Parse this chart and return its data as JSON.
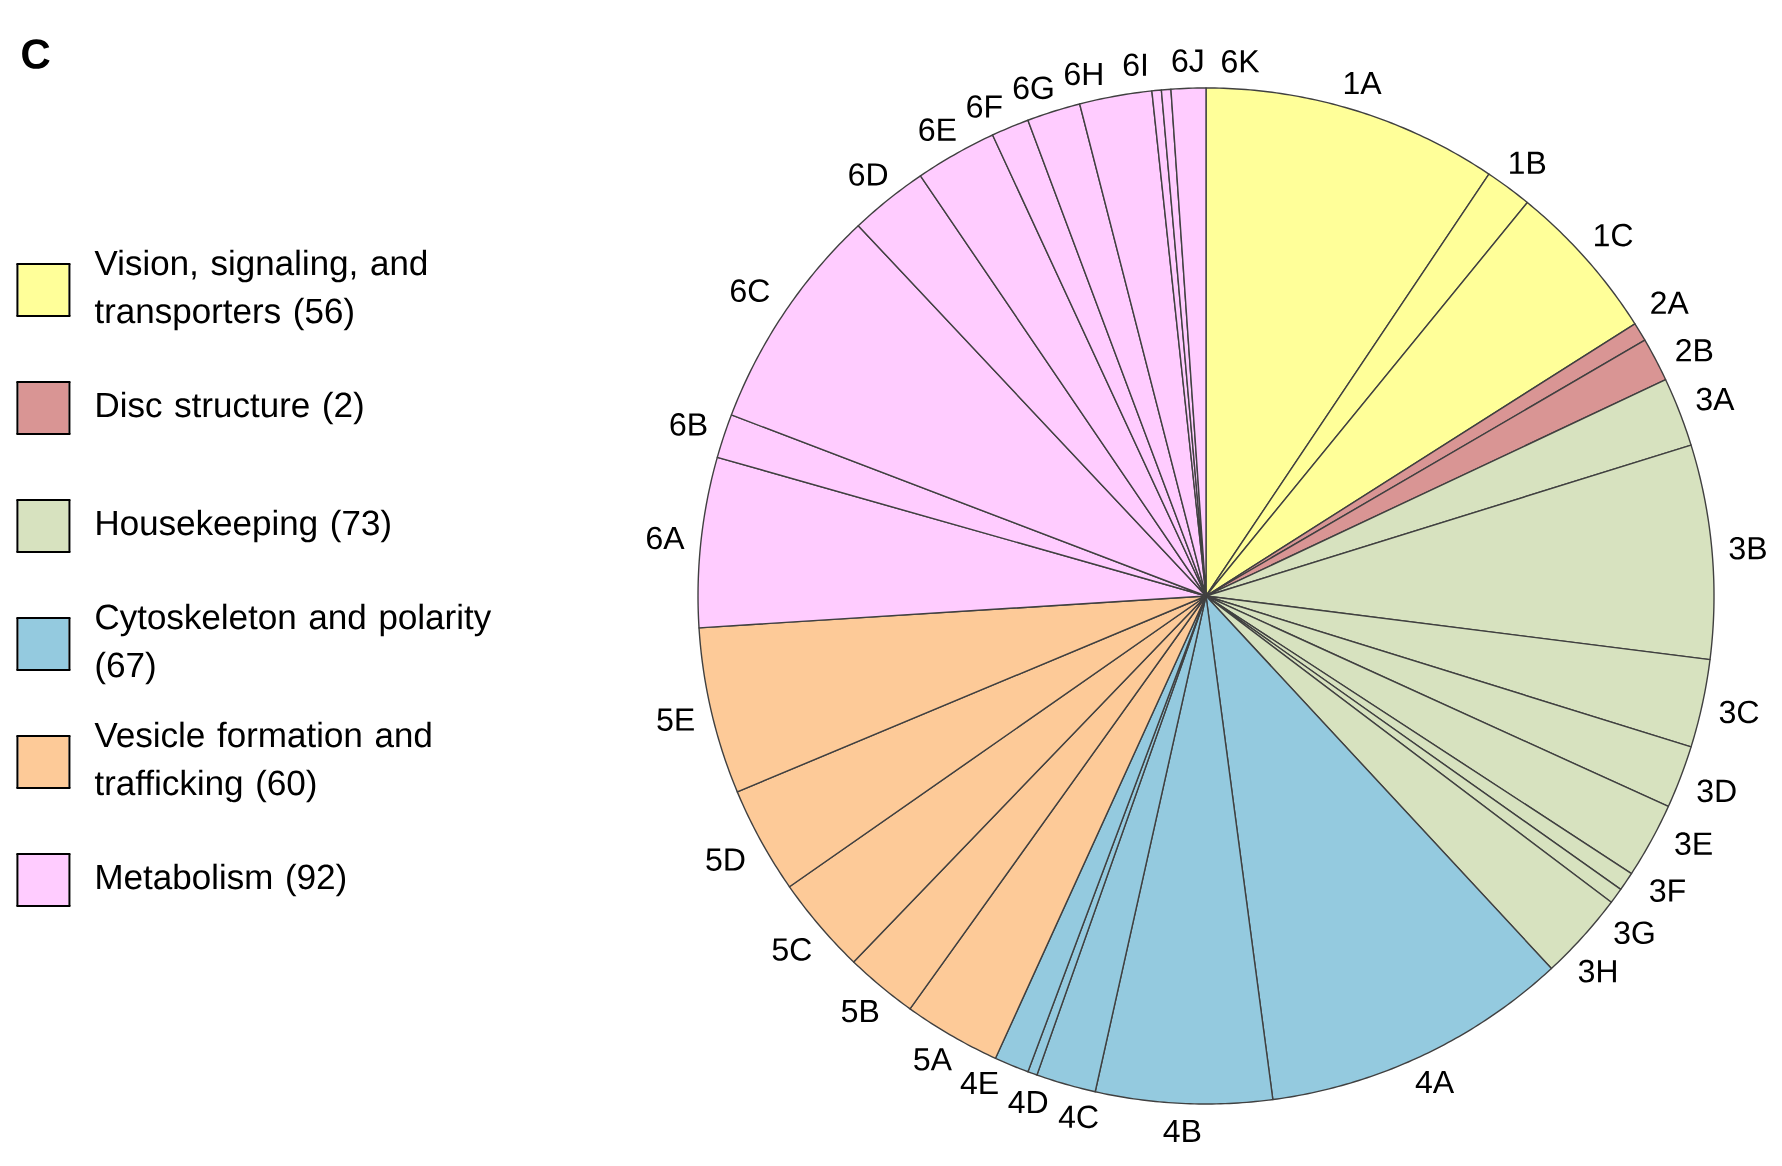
{
  "chart_data": {
    "type": "pie",
    "title": "C",
    "categories": [
      "1A",
      "1B",
      "1C",
      "2A",
      "2B",
      "3A",
      "3B",
      "3C",
      "3D",
      "3E",
      "3F",
      "3G",
      "3H",
      "4A",
      "4B",
      "4C",
      "4D",
      "4E",
      "5A",
      "5B",
      "5C",
      "5D",
      "5E",
      "6A",
      "6B",
      "6C",
      "6D",
      "6E",
      "6F",
      "6G",
      "6H",
      "6I",
      "6J",
      "6K"
    ],
    "values": [
      9.4,
      1.5,
      5.1,
      0.6,
      1.4,
      2.2,
      6.8,
      2.8,
      2.0,
      2.4,
      0.6,
      0.5,
      2.8,
      9.8,
      5.6,
      1.9,
      0.3,
      1.1,
      3.1,
      2.3,
      3.1,
      3.4,
      5.3,
      5.4,
      1.4,
      7.2,
      2.5,
      2.6,
      1.2,
      1.7,
      2.3,
      0.3,
      0.3,
      1.1
    ],
    "colors": [
      "#ffff99",
      "#ffff99",
      "#ffff99",
      "#d99594",
      "#d99594",
      "#d7e2bf",
      "#d7e2bf",
      "#d7e2bf",
      "#d7e2bf",
      "#d7e2bf",
      "#d7e2bf",
      "#d7e2bf",
      "#d7e2bf",
      "#94cadf",
      "#94cadf",
      "#94cadf",
      "#94cadf",
      "#94cadf",
      "#fdca98",
      "#fdca98",
      "#fdca98",
      "#fdca98",
      "#fdca98",
      "#ffccff",
      "#ffccff",
      "#ffccff",
      "#ffccff",
      "#ffccff",
      "#ffccff",
      "#ffccff",
      "#ffccff",
      "#ffccff",
      "#ffccff",
      "#ffccff"
    ],
    "annotations": [
      "Vision, signaling, and transporters (56)",
      "Disc structure (2)",
      "Housekeeping (73)",
      "Cytoskeleton and polarity (67)",
      "Vesicle formation and trafficking (60)",
      "Metabolism (92)"
    ]
  }
}
